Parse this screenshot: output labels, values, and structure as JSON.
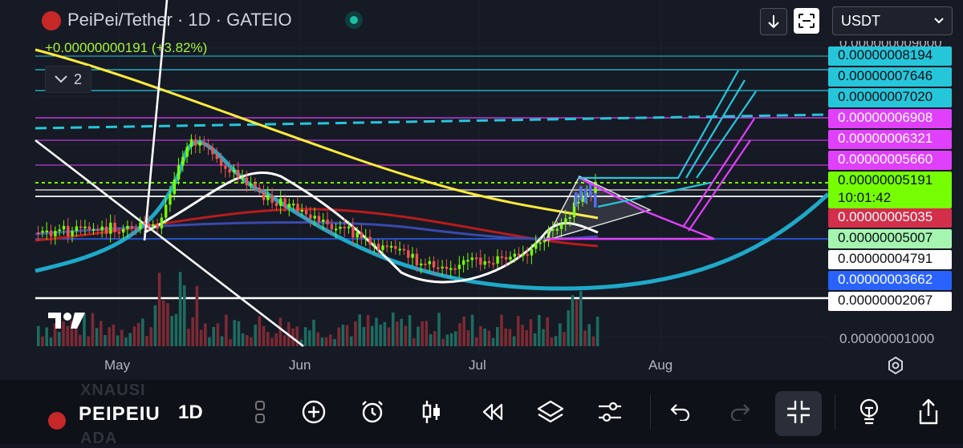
{
  "header": {
    "title": "PeiPei/Tether · 1D · GATEIO",
    "change": "+0.00000000191 (+3.82%)",
    "indicators_count": "2",
    "currency": "USDT"
  },
  "price_axis": {
    "top_tick": "0.000000009000",
    "bottom_tick": "0.00000001000",
    "labels": [
      {
        "text": "0.00000008194",
        "bg": "#26c6da",
        "fg": "#0b0e14"
      },
      {
        "text": "0.00000007646",
        "bg": "#26c6da",
        "fg": "#0b0e14"
      },
      {
        "text": "0.00000007020",
        "bg": "#26c6da",
        "fg": "#0b0e14"
      },
      {
        "text": "0.00000006908",
        "bg": "#e040fb",
        "fg": "#ffffff"
      },
      {
        "text": "0.00000006321",
        "bg": "#e040fb",
        "fg": "#ffffff"
      },
      {
        "text": "0.00000005660",
        "bg": "#e040fb",
        "fg": "#ffffff"
      },
      {
        "text": "0.00000005191",
        "bg": "#76ff03",
        "fg": "#0b0e14"
      },
      {
        "text": "10:01:42",
        "bg": "#76ff03",
        "fg": "#0b0e14"
      },
      {
        "text": "0.00000005035",
        "bg": "#d32f4a",
        "fg": "#ffffff"
      },
      {
        "text": "0.00000005007",
        "bg": "#a5f5b0",
        "fg": "#0b0e14"
      },
      {
        "text": "0.00000004791",
        "bg": "#ffffff",
        "fg": "#0b0e14"
      },
      {
        "text": "0.00000003662",
        "bg": "#2962ff",
        "fg": "#ffffff"
      },
      {
        "text": "0.00000002067",
        "bg": "#ffffff",
        "fg": "#0b0e14"
      }
    ]
  },
  "time_axis": [
    "May",
    "Jun",
    "Jul",
    "Aug"
  ],
  "toolbar": {
    "symbol": "PEIPEIU",
    "interval": "1D",
    "ghost_top": "XNAUSI",
    "ghost_bottom": "ADA"
  },
  "colors": {
    "up": "#76ff03",
    "down": "#ef5350",
    "cyan": "#26c6da",
    "magenta": "#e040fb",
    "yellow": "#ffeb3b",
    "teal_curve": "#1fa9c9"
  },
  "chart_data": {
    "type": "candlestick",
    "x_axis_months": [
      "May",
      "Jun",
      "Jul",
      "Aug"
    ],
    "last_price": "0.00000005191",
    "countdown": "10:01:42"
  }
}
